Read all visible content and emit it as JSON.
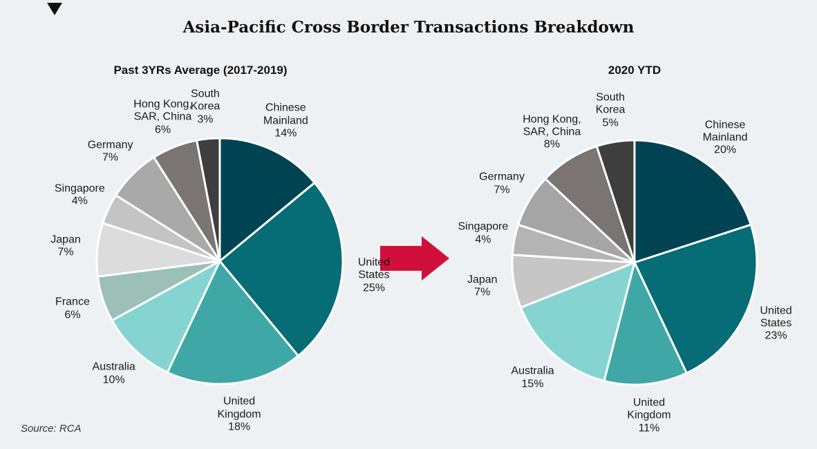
{
  "title": "Asia-Pacific Cross Border Transactions Breakdown",
  "source": "Source:  RCA",
  "chart_data": [
    {
      "type": "pie",
      "title": "Past 3YRs Average (2017-2019)",
      "categories": [
        "Chinese\nMainland",
        "United\nStates",
        "United\nKingdom",
        "Australia",
        "France",
        "Japan",
        "Singapore",
        "Germany",
        "Hong Kong,\nSAR, China",
        "South\nKorea"
      ],
      "values": [
        14,
        25,
        18,
        10,
        6,
        7,
        4,
        7,
        6,
        3
      ],
      "value_labels": [
        "14%",
        "25%",
        "18%",
        "10%",
        "6%",
        "7%",
        "4%",
        "7%",
        "6%",
        "3%"
      ],
      "colors": [
        "#004454",
        "#066c76",
        "#3fa8a6",
        "#86d4d2",
        "#9cc0b8",
        "#dcdcdc",
        "#c4c4c4",
        "#a9a9a9",
        "#7a7472",
        "#3e3e3e"
      ]
    },
    {
      "type": "pie",
      "title": "2020 YTD",
      "categories": [
        "Chinese\nMainland",
        "United\nStates",
        "United\nKingdom",
        "Australia",
        "Japan",
        "Singapore",
        "Germany",
        "Hong Kong,\nSAR, China",
        "South\nKorea"
      ],
      "values": [
        20,
        23,
        11,
        15,
        7,
        4,
        7,
        8,
        5
      ],
      "value_labels": [
        "20%",
        "23%",
        "11%",
        "15%",
        "7%",
        "4%",
        "7%",
        "8%",
        "5%"
      ],
      "colors": [
        "#004454",
        "#066c76",
        "#3fa8a6",
        "#86d4d2",
        "#c6c6c6",
        "#b4b4b4",
        "#a5a5a5",
        "#7a7472",
        "#3e3e3e"
      ]
    }
  ]
}
